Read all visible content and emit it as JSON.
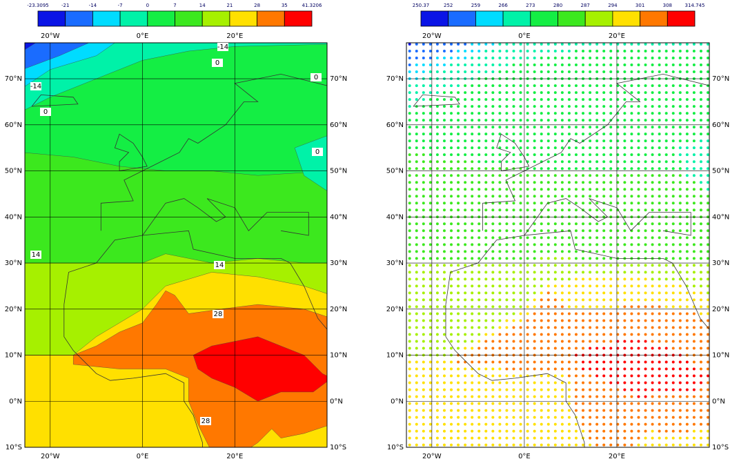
{
  "panels": [
    {
      "colorbar": {
        "ticks": [
          -23.3095,
          -21,
          -14,
          -7,
          0,
          7,
          14,
          21,
          28,
          35,
          41.3206
        ],
        "colors": [
          "#0a14e6",
          "#1a6cff",
          "#00dcff",
          "#00f2a8",
          "#14ee44",
          "#3ce81e",
          "#a6f000",
          "#ffe000",
          "#ff7800",
          "#ff0000"
        ]
      },
      "lon_labels": [
        "20°W",
        "0°E",
        "20°E"
      ],
      "lat_labels": [
        "70°N",
        "60°N",
        "50°N",
        "40°N",
        "30°N",
        "20°N",
        "10°N",
        "0°N",
        "10°S"
      ],
      "contour_labels": [
        "-14",
        "0",
        "0",
        "-14",
        "0",
        "0",
        "14",
        "14",
        "28",
        "28"
      ]
    },
    {
      "colorbar": {
        "ticks": [
          250.37,
          252,
          259,
          266,
          273,
          280,
          287,
          294,
          301,
          308,
          314.745
        ],
        "colors": [
          "#0a14e6",
          "#1a6cff",
          "#00dcff",
          "#00f2a8",
          "#14ee44",
          "#3ce81e",
          "#a6f000",
          "#ffe000",
          "#ff7800",
          "#ff0000"
        ]
      },
      "lon_labels": [
        "20°W",
        "0°E",
        "20°E"
      ],
      "lat_labels": [
        "70°N",
        "60°N",
        "50°N",
        "40°N",
        "30°N",
        "20°N",
        "10°N",
        "0°N",
        "10°S"
      ]
    }
  ]
}
